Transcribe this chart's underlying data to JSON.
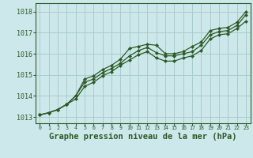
{
  "title": "Graphe pression niveau de la mer (hPa)",
  "background_color": "#cce8ea",
  "grid_color": "#aacccc",
  "line_color": "#2d5a27",
  "xlim": [
    -0.5,
    23.5
  ],
  "ylim": [
    1012.7,
    1018.4
  ],
  "yticks": [
    1013,
    1014,
    1015,
    1016,
    1017,
    1018
  ],
  "xticks": [
    0,
    1,
    2,
    3,
    4,
    5,
    6,
    7,
    8,
    9,
    10,
    11,
    12,
    13,
    14,
    15,
    16,
    17,
    18,
    19,
    20,
    21,
    22,
    23
  ],
  "series": [
    [
      1013.1,
      1013.2,
      1013.35,
      1013.6,
      1014.0,
      1014.8,
      1014.95,
      1015.25,
      1015.45,
      1015.75,
      1016.25,
      1016.35,
      1016.45,
      1016.4,
      1016.0,
      1016.0,
      1016.1,
      1016.35,
      1016.55,
      1017.1,
      1017.2,
      1017.25,
      1017.5,
      1018.0
    ],
    [
      1013.1,
      1013.2,
      1013.35,
      1013.6,
      1014.0,
      1014.65,
      1014.8,
      1015.1,
      1015.3,
      1015.55,
      1015.9,
      1016.15,
      1016.3,
      1016.05,
      1015.9,
      1015.9,
      1016.0,
      1016.1,
      1016.4,
      1016.9,
      1017.05,
      1017.1,
      1017.35,
      1017.85
    ],
    [
      1013.1,
      1013.2,
      1013.35,
      1013.6,
      1013.85,
      1014.45,
      1014.65,
      1014.95,
      1015.15,
      1015.45,
      1015.7,
      1015.95,
      1016.1,
      1015.8,
      1015.65,
      1015.65,
      1015.8,
      1015.9,
      1016.15,
      1016.7,
      1016.9,
      1016.95,
      1017.2,
      1017.55
    ]
  ],
  "xlabel_fontsize": 7.5,
  "tick_fontsize": 5.5,
  "ytick_fontsize": 6.0
}
